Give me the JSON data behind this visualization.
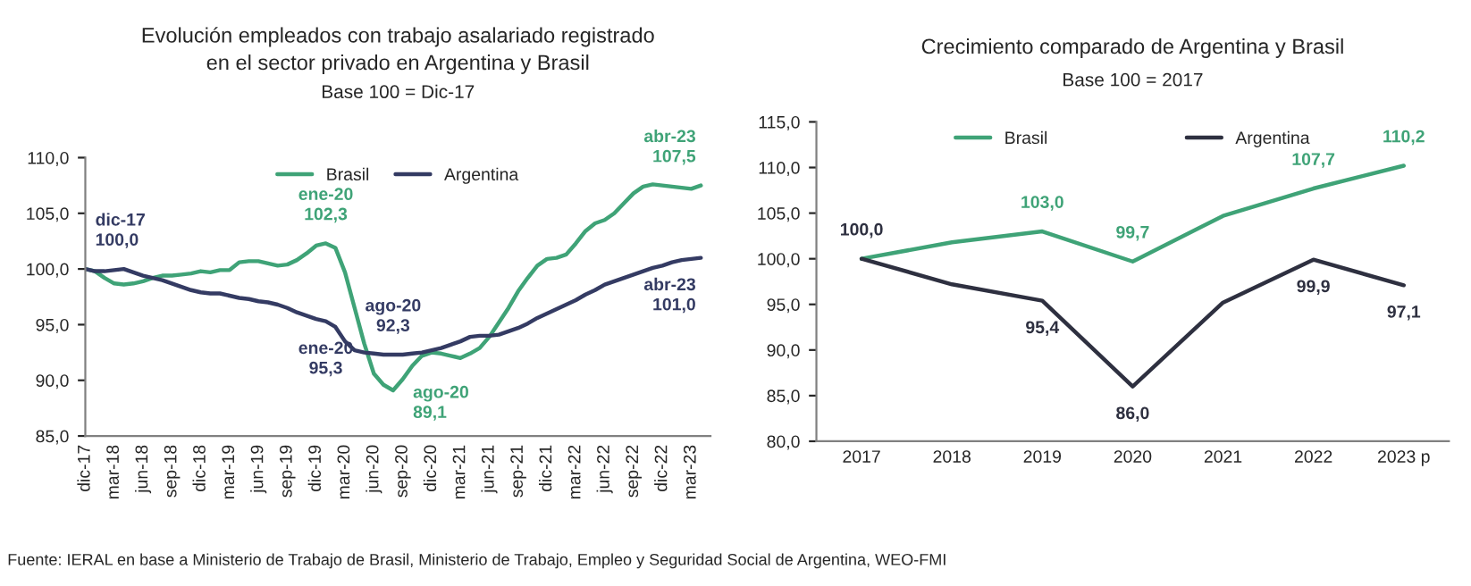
{
  "chart_data": [
    {
      "type": "line",
      "title": "Evolución empleados con trabajo asalariado registrado\nen el sector privado en Argentina y Brasil",
      "subtitle": "Base 100 = Dic-17",
      "categories": [
        "dic-17",
        null,
        null,
        "mar-18",
        null,
        null,
        "jun-18",
        null,
        null,
        "sep-18",
        null,
        null,
        "dic-18",
        null,
        null,
        "mar-19",
        null,
        null,
        "jun-19",
        null,
        null,
        "sep-19",
        null,
        null,
        "dic-19",
        null,
        null,
        "mar-20",
        null,
        null,
        "jun-20",
        null,
        null,
        "sep-20",
        null,
        null,
        "dic-20",
        null,
        null,
        "mar-21",
        null,
        null,
        "jun-21",
        null,
        null,
        "sep-21",
        null,
        null,
        "dic-21",
        null,
        null,
        "mar-22",
        null,
        null,
        "jun-22",
        null,
        null,
        "sep-22",
        null,
        null,
        "dic-22",
        null,
        null,
        "mar-23",
        null
      ],
      "series": [
        {
          "name": "Brasil",
          "color": "#3fa377",
          "values": [
            100.0,
            99.8,
            99.2,
            98.7,
            98.6,
            98.7,
            98.9,
            99.2,
            99.4,
            99.4,
            99.5,
            99.6,
            99.8,
            99.7,
            99.9,
            99.9,
            100.6,
            100.7,
            100.7,
            100.5,
            100.3,
            100.4,
            100.8,
            101.4,
            102.1,
            102.3,
            101.9,
            99.7,
            96.5,
            93.3,
            90.6,
            89.6,
            89.1,
            90.1,
            91.3,
            92.2,
            92.5,
            92.4,
            92.2,
            92.0,
            92.4,
            92.9,
            93.9,
            95.2,
            96.5,
            98.0,
            99.2,
            100.3,
            100.9,
            101.0,
            101.3,
            102.3,
            103.4,
            104.1,
            104.4,
            105.0,
            105.9,
            106.8,
            107.4,
            107.6,
            107.5,
            107.4,
            107.3,
            107.2,
            107.5
          ],
          "value_labels": [
            null,
            null,
            null,
            null,
            null,
            null,
            null,
            null,
            null,
            null,
            null,
            null,
            null,
            null,
            null,
            null,
            null,
            null,
            null,
            null,
            null,
            null,
            null,
            null,
            null,
            "ene-20\n102,3",
            null,
            null,
            null,
            null,
            null,
            null,
            "ago-20\n89,1",
            null,
            null,
            null,
            null,
            null,
            null,
            null,
            null,
            null,
            null,
            null,
            null,
            null,
            null,
            null,
            null,
            null,
            null,
            null,
            null,
            null,
            null,
            null,
            null,
            null,
            null,
            null,
            null,
            null,
            null,
            null,
            "abr-23\n107,5"
          ]
        },
        {
          "name": "Argentina",
          "color": "#343b63",
          "values": [
            100.0,
            99.8,
            99.8,
            99.9,
            100.0,
            99.7,
            99.4,
            99.2,
            99.0,
            98.7,
            98.4,
            98.1,
            97.9,
            97.8,
            97.8,
            97.6,
            97.4,
            97.3,
            97.1,
            97.0,
            96.8,
            96.5,
            96.1,
            95.8,
            95.5,
            95.3,
            94.8,
            93.5,
            92.7,
            92.5,
            92.4,
            92.3,
            92.3,
            92.3,
            92.4,
            92.5,
            92.7,
            92.9,
            93.2,
            93.5,
            93.9,
            94.0,
            94.0,
            94.1,
            94.4,
            94.7,
            95.1,
            95.6,
            96.0,
            96.4,
            96.8,
            97.2,
            97.7,
            98.1,
            98.6,
            98.9,
            99.2,
            99.5,
            99.8,
            100.1,
            100.3,
            100.6,
            100.8,
            100.9,
            101.0
          ],
          "value_labels": [
            "dic-17\n100,0",
            null,
            null,
            null,
            null,
            null,
            null,
            null,
            null,
            null,
            null,
            null,
            null,
            null,
            null,
            null,
            null,
            null,
            null,
            null,
            null,
            null,
            null,
            null,
            null,
            "ene-20\n95,3",
            null,
            null,
            null,
            null,
            null,
            null,
            "ago-20\n92,3",
            null,
            null,
            null,
            null,
            null,
            null,
            null,
            null,
            null,
            null,
            null,
            null,
            null,
            null,
            null,
            null,
            null,
            null,
            null,
            null,
            null,
            null,
            null,
            null,
            null,
            null,
            null,
            null,
            null,
            null,
            null,
            "abr-23\n101,0"
          ]
        }
      ],
      "ylim": [
        85,
        110
      ],
      "yticks": [
        {
          "value": 85,
          "label": "85,0"
        },
        {
          "value": 90,
          "label": "90,0"
        },
        {
          "value": 95,
          "label": "95,0"
        },
        {
          "value": 100,
          "label": "100,0"
        },
        {
          "value": 105,
          "label": "105,0"
        },
        {
          "value": 110,
          "label": "110,0"
        }
      ],
      "grid": false,
      "legend": "top",
      "marker": "none",
      "line_style": "solid",
      "annotations": [
        "Fuente: IERAL en base a Ministerio de Trabajo de Brasil, Ministerio de Trabajo, Empleo y Seguridad Social de Argentina, WEO-FMI"
      ]
    },
    {
      "type": "line",
      "title": "Crecimiento comparado de Argentina y Brasil",
      "subtitle": "Base 100 = 2017",
      "categories": [
        "2017",
        "2018",
        "2019",
        "2020",
        "2021",
        "2022",
        "2023 p"
      ],
      "series": [
        {
          "name": "Brasil",
          "color": "#3fa377",
          "values": [
            100.0,
            101.8,
            103.0,
            99.7,
            104.7,
            107.7,
            110.2
          ],
          "value_labels": [
            null,
            null,
            "103,0",
            "99,7",
            null,
            "107,7",
            "110,2"
          ]
        },
        {
          "name": "Argentina",
          "color": "#2e3040",
          "values": [
            100.0,
            97.2,
            95.4,
            86.0,
            95.2,
            99.9,
            97.1
          ],
          "value_labels": [
            "100,0",
            null,
            "95,4",
            "86,0",
            null,
            "99,9",
            "97,1"
          ]
        }
      ],
      "ylim": [
        80,
        115
      ],
      "yticks": [
        {
          "value": 80,
          "label": "80,0"
        },
        {
          "value": 85,
          "label": "85,0"
        },
        {
          "value": 90,
          "label": "90,0"
        },
        {
          "value": 95,
          "label": "95,0"
        },
        {
          "value": 100,
          "label": "100,0"
        },
        {
          "value": 105,
          "label": "105,0"
        },
        {
          "value": 110,
          "label": "110,0"
        },
        {
          "value": 115,
          "label": "115,0"
        }
      ],
      "grid": false,
      "legend": "top",
      "marker": "none",
      "line_style": "solid"
    }
  ]
}
